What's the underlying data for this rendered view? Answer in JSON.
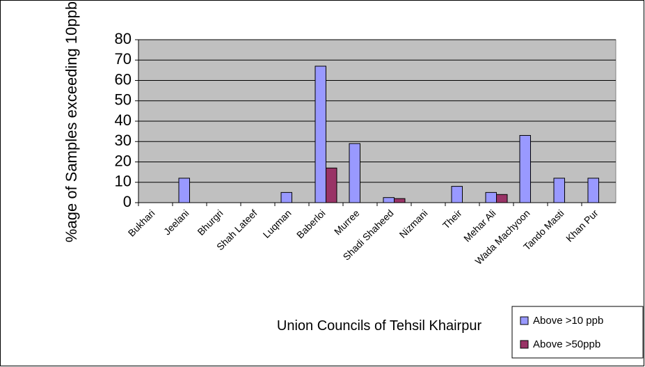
{
  "chart_data": {
    "type": "bar",
    "x_label": "Union Councils of Tehsil Khairpur",
    "y_label": "%age of Samples exceeding 10ppb",
    "categories": [
      "Bukhari",
      "Jeelani",
      "Bhurgri",
      "Shah Lateef",
      "Luqman",
      "Baberloi",
      "Murree",
      "Shadi Shaheed",
      "Nizmani",
      "Their",
      "Mehar Ali",
      "Wada Machyoon",
      "Tando Masti",
      "Khan Pur"
    ],
    "series": [
      {
        "name": "Above >10 ppb",
        "color": "#9999ff",
        "values": [
          0,
          12,
          0,
          0,
          5,
          67,
          29,
          2.5,
          0,
          8,
          5,
          33,
          12,
          12
        ]
      },
      {
        "name": "Above >50ppb",
        "color": "#993366",
        "values": [
          0,
          0,
          0,
          0,
          0,
          17,
          0,
          2,
          0,
          0,
          4,
          0,
          0,
          0
        ]
      }
    ],
    "ylim": [
      0,
      80
    ],
    "yticks": [
      0,
      10,
      20,
      30,
      40,
      50,
      60,
      70,
      80
    ],
    "grid": true
  }
}
